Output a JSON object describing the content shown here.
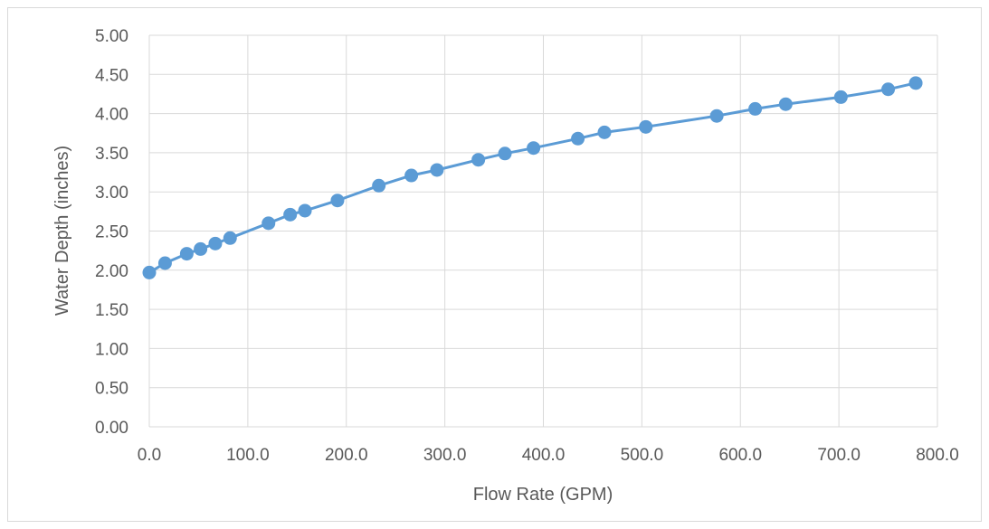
{
  "chart_data": {
    "type": "scatter",
    "title": "",
    "xlabel": "Flow Rate (GPM)",
    "ylabel": "Water Depth (inches)",
    "xlim": [
      0,
      800
    ],
    "ylim": [
      0,
      5
    ],
    "x_ticks": [
      "0.0",
      "100.0",
      "200.0",
      "300.0",
      "400.0",
      "500.0",
      "600.0",
      "700.0",
      "800.0"
    ],
    "y_ticks": [
      "0.00",
      "0.50",
      "1.00",
      "1.50",
      "2.00",
      "2.50",
      "3.00",
      "3.50",
      "4.00",
      "4.50",
      "5.00"
    ],
    "grid": true,
    "legend": "none",
    "color": "#5b9bd5",
    "series": [
      {
        "x": [
          0,
          16,
          38,
          52,
          67,
          82,
          121,
          143,
          158,
          191,
          233,
          266,
          292,
          334,
          361,
          390,
          435,
          462,
          504,
          576,
          615,
          646,
          702,
          750,
          778
        ],
        "y": [
          1.97,
          2.09,
          2.21,
          2.27,
          2.34,
          2.41,
          2.6,
          2.71,
          2.76,
          2.89,
          3.08,
          3.21,
          3.28,
          3.41,
          3.49,
          3.56,
          3.68,
          3.76,
          3.83,
          3.97,
          4.06,
          4.12,
          4.21,
          4.31,
          4.39
        ]
      }
    ]
  }
}
